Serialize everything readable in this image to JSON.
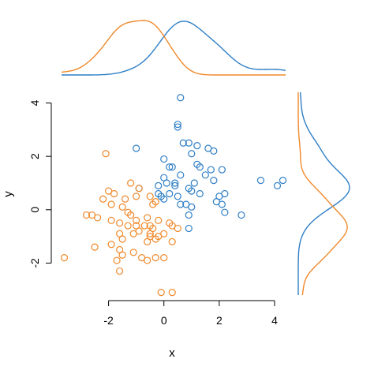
{
  "chart_data": {
    "type": "scatter",
    "title": "",
    "xlabel": "x",
    "ylabel": "y",
    "xlim": [
      -3.7,
      4.4
    ],
    "ylim": [
      -3.2,
      4.4
    ],
    "x_ticks": [
      -2,
      0,
      2,
      4
    ],
    "y_ticks": [
      -2,
      0,
      2,
      4
    ],
    "x_tick_labels": [
      "-2",
      "0",
      "2",
      "4"
    ],
    "y_tick_labels": [
      "-2",
      "0",
      "2",
      "4"
    ],
    "grid": false,
    "legend": "none",
    "marginal_density": {
      "top": true,
      "right": true
    },
    "series": [
      {
        "color": "#2f7fc6",
        "points": [
          [
            0.6,
            4.2
          ],
          [
            0.5,
            3.2
          ],
          [
            0.5,
            3.1
          ],
          [
            0.7,
            2.5
          ],
          [
            0.9,
            2.5
          ],
          [
            1.2,
            2.4
          ],
          [
            1.6,
            2.3
          ],
          [
            1.8,
            2.2
          ],
          [
            -1.0,
            2.3
          ],
          [
            1.0,
            2.1
          ],
          [
            0.0,
            1.9
          ],
          [
            0.2,
            1.6
          ],
          [
            0.3,
            1.6
          ],
          [
            1.2,
            1.7
          ],
          [
            1.3,
            1.6
          ],
          [
            2.1,
            1.5
          ],
          [
            1.7,
            1.5
          ],
          [
            1.5,
            1.3
          ],
          [
            0.6,
            1.3
          ],
          [
            0.0,
            1.2
          ],
          [
            1.8,
            1.1
          ],
          [
            0.1,
            1.0
          ],
          [
            0.4,
            1.0
          ],
          [
            1.1,
            1.0
          ],
          [
            -0.2,
            0.9
          ],
          [
            0.4,
            0.9
          ],
          [
            0.2,
            0.6
          ],
          [
            -0.2,
            0.6
          ],
          [
            0.9,
            0.8
          ],
          [
            1.0,
            0.7
          ],
          [
            -0.1,
            0.5
          ],
          [
            0.0,
            0.4
          ],
          [
            0.5,
            0.5
          ],
          [
            1.3,
            0.6
          ],
          [
            2.2,
            0.6
          ],
          [
            2.0,
            0.5
          ],
          [
            1.9,
            0.3
          ],
          [
            2.1,
            0.2
          ],
          [
            -0.9,
            0.8
          ],
          [
            0.8,
            0.2
          ],
          [
            1.0,
            0.1
          ],
          [
            0.6,
            0.2
          ],
          [
            0.9,
            -0.2
          ],
          [
            2.2,
            -0.1
          ],
          [
            2.8,
            -0.2
          ],
          [
            3.5,
            1.1
          ],
          [
            4.1,
            0.9
          ],
          [
            4.3,
            1.1
          ],
          [
            0.9,
            -0.7
          ]
        ]
      },
      {
        "color": "#f0892b",
        "points": [
          [
            -2.1,
            2.1
          ],
          [
            -1.2,
            1.0
          ],
          [
            -0.9,
            0.8
          ],
          [
            -2.0,
            0.7
          ],
          [
            -1.8,
            0.6
          ],
          [
            -1.0,
            0.5
          ],
          [
            -0.5,
            0.5
          ],
          [
            -2.2,
            0.4
          ],
          [
            -1.4,
            0.4
          ],
          [
            -1.9,
            0.2
          ],
          [
            -1.5,
            0.1
          ],
          [
            -0.4,
            0.2
          ],
          [
            -0.3,
            0.3
          ],
          [
            -2.8,
            -0.2
          ],
          [
            -2.6,
            -0.2
          ],
          [
            -2.4,
            -0.3
          ],
          [
            -1.3,
            -0.1
          ],
          [
            -1.2,
            -0.2
          ],
          [
            -0.6,
            -0.3
          ],
          [
            -1.0,
            -0.4
          ],
          [
            -0.2,
            -0.4
          ],
          [
            -1.9,
            -0.4
          ],
          [
            -1.6,
            -0.5
          ],
          [
            -1.0,
            -0.6
          ],
          [
            -0.5,
            -0.6
          ],
          [
            -0.7,
            -0.6
          ],
          [
            -1.3,
            -0.6
          ],
          [
            0.2,
            -0.5
          ],
          [
            0.3,
            -0.6
          ],
          [
            -0.4,
            -0.7
          ],
          [
            0.5,
            -0.7
          ],
          [
            -0.9,
            -0.8
          ],
          [
            -0.5,
            -0.9
          ],
          [
            -1.6,
            -0.9
          ],
          [
            -1.1,
            -0.9
          ],
          [
            0.0,
            -0.9
          ],
          [
            -0.5,
            -1.0
          ],
          [
            -1.5,
            -1.1
          ],
          [
            -0.3,
            -1.1
          ],
          [
            -0.6,
            -1.2
          ],
          [
            0.3,
            -1.2
          ],
          [
            -1.9,
            -1.3
          ],
          [
            -1.6,
            -1.5
          ],
          [
            -1.1,
            -1.6
          ],
          [
            -1.5,
            -1.7
          ],
          [
            0.0,
            -1.8
          ],
          [
            -0.8,
            -1.8
          ],
          [
            -0.3,
            -1.8
          ],
          [
            -1.7,
            -1.9
          ],
          [
            -0.6,
            -1.9
          ],
          [
            -2.5,
            -1.4
          ],
          [
            -3.6,
            -1.8
          ],
          [
            -1.6,
            -2.3
          ],
          [
            -0.1,
            -3.1
          ],
          [
            0.3,
            -3.1
          ],
          [
            -0.2,
            -1.0
          ]
        ]
      }
    ]
  }
}
